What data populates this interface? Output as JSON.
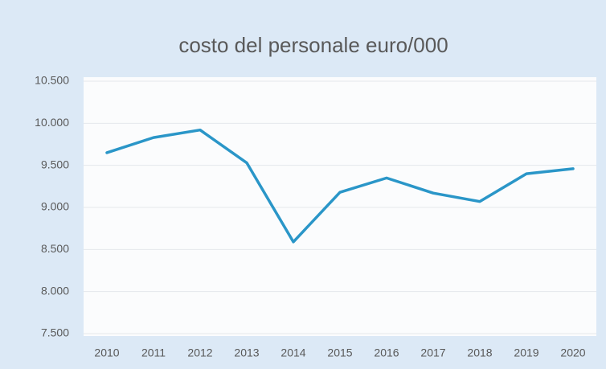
{
  "chart_data": {
    "type": "line",
    "title": "costo del personale euro/000",
    "categories": [
      "2010",
      "2011",
      "2012",
      "2013",
      "2014",
      "2015",
      "2016",
      "2017",
      "2018",
      "2019",
      "2020"
    ],
    "series": [
      {
        "name": "costo del personale",
        "color": "#2a96c8",
        "values": [
          9650,
          9830,
          9920,
          9530,
          8590,
          9180,
          9350,
          9170,
          9070,
          9400,
          9460
        ]
      }
    ],
    "ylim": [
      7500,
      10500
    ],
    "yticks": [
      {
        "value": 7500,
        "label": "7.500"
      },
      {
        "value": 8000,
        "label": "8.000"
      },
      {
        "value": 8500,
        "label": "8.500"
      },
      {
        "value": 9000,
        "label": "9.000"
      },
      {
        "value": 9500,
        "label": "9.500"
      },
      {
        "value": 10000,
        "label": "10.000"
      },
      {
        "value": 10500,
        "label": "10.500"
      }
    ],
    "grid": true
  }
}
